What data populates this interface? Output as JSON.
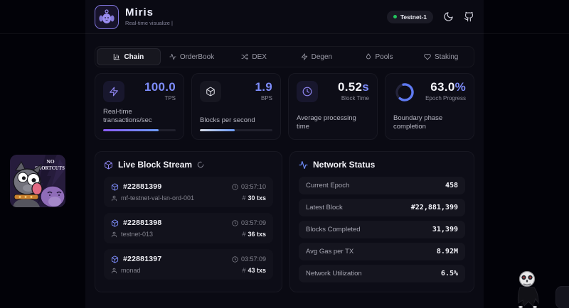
{
  "header": {
    "title": "Miris",
    "subtitle": "Real-time visualize |",
    "badge": {
      "label": "Testnet-1",
      "dot_color": "#22c55e"
    },
    "icons": [
      "moon-icon",
      "github-icon"
    ]
  },
  "tabs": {
    "items": [
      {
        "label": "Chain",
        "active": true
      },
      {
        "label": "OrderBook",
        "active": false
      },
      {
        "label": "DEX",
        "active": false
      },
      {
        "label": "Degen",
        "active": false
      },
      {
        "label": "Pools",
        "active": false
      },
      {
        "label": "Staking",
        "active": false
      }
    ]
  },
  "stats": {
    "cards": [
      {
        "icon": "zap",
        "value": "100.0",
        "suffix": "",
        "unit": "TPS",
        "label": "Real-time transactions/sec",
        "progress": 76
      },
      {
        "icon": "cube",
        "value": "1.9",
        "suffix": "",
        "unit": "BPS",
        "label": "Blocks per second",
        "progress": 48
      },
      {
        "icon": "clock",
        "value": "0.52",
        "suffix": "s",
        "unit": "Block Time",
        "label": "Average processing time"
      },
      {
        "icon": "ring",
        "value": "63.0",
        "suffix": "%",
        "unit": "Epoch Progress",
        "label": "Boundary phase completion",
        "progress": 63
      }
    ]
  },
  "stream": {
    "title": "Live Block Stream",
    "tx_prefix": "#",
    "blocks": [
      {
        "number": "#22881399",
        "validator": "mf-testnet-val-lsn-ord-001",
        "time": "03:57:10",
        "txs": "30 txs"
      },
      {
        "number": "#22881398",
        "validator": "testnet-013",
        "time": "03:57:09",
        "txs": "36 txs"
      },
      {
        "number": "#22881397",
        "validator": "monad",
        "time": "03:57:09",
        "txs": "43 txs"
      }
    ]
  },
  "status": {
    "title": "Network Status",
    "rows": [
      {
        "label": "Current Epoch",
        "value": "458"
      },
      {
        "label": "Latest Block",
        "value": "#22,881,399"
      },
      {
        "label": "Blocks Completed",
        "value": "31,399"
      },
      {
        "label": "Avg Gas per TX",
        "value": "8.92M"
      },
      {
        "label": "Network Utilization",
        "value": "6.5%"
      }
    ]
  },
  "stickers": {
    "no_shortcuts_line1": "NO",
    "no_shortcuts_line2": "SHORTCUTS"
  },
  "colors": {
    "accent": "#7d8cfa",
    "purple": "#8b5cf6",
    "green": "#22c55e",
    "bg": "#0a0a13"
  }
}
